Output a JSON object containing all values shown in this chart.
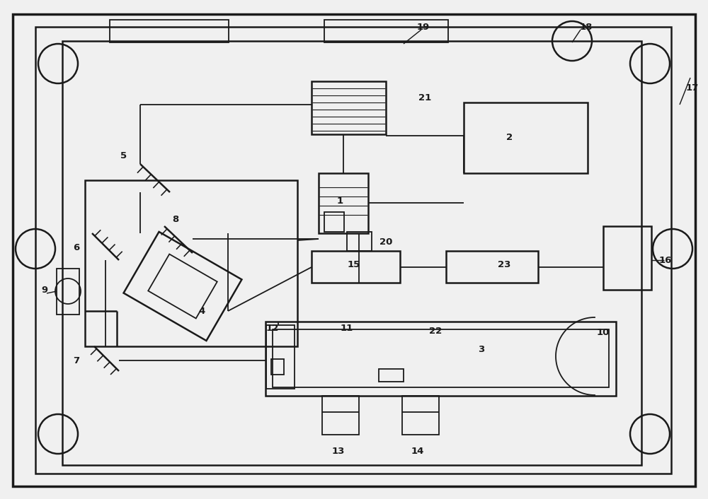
{
  "bg_color": "#f0f0f0",
  "line_color": "#1a1a1a",
  "lw": 1.3,
  "lw2": 1.8,
  "lw3": 2.5,
  "fig_w": 10.0,
  "fig_h": 7.06
}
